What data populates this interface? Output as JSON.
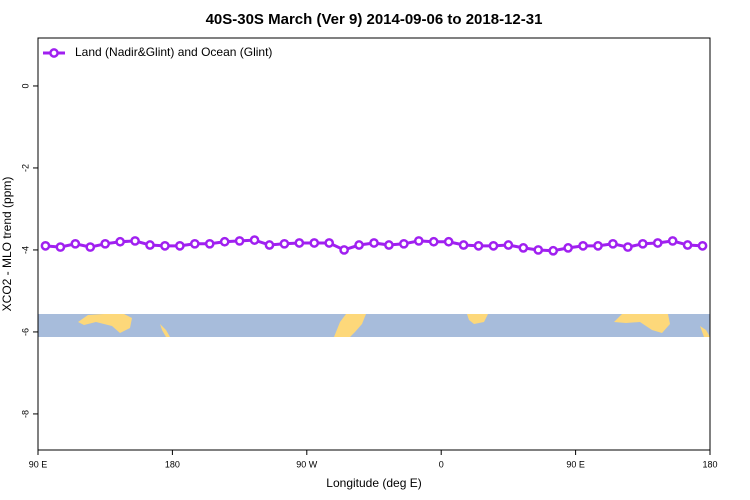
{
  "chart_data": {
    "type": "line",
    "title": "40S-30S March (Ver 9)   2014-09-06 to 2018-12-31",
    "xlabel": "Longitude (deg E)",
    "ylabel": "XCO2 - MLO trend (ppm)",
    "xlim": [
      90,
      540
    ],
    "xticks": [
      {
        "value": 90,
        "label": "90 E"
      },
      180,
      {
        "value": 270,
        "label": "90 W"
      },
      {
        "value": 360,
        "label": "0"
      },
      {
        "value": 450,
        "label": "90 E"
      },
      {
        "value": 540,
        "label": "180"
      }
    ],
    "ylim": [
      -8.88,
      1.17
    ],
    "yticks": [
      0,
      -2,
      -4,
      -6,
      -8
    ],
    "legend": "upper left",
    "x": [
      95,
      105,
      115,
      125,
      135,
      145,
      155,
      165,
      175,
      185,
      195,
      205,
      215,
      225,
      235,
      245,
      255,
      265,
      275,
      285,
      295,
      305,
      315,
      325,
      335,
      345,
      355,
      365,
      375,
      385,
      395,
      405,
      415,
      425,
      435,
      445,
      455,
      465,
      475,
      485,
      495,
      505,
      515,
      525,
      535
    ],
    "series": [
      {
        "name": "Land (Nadir&Glint) and Ocean (Glint)",
        "color": "#a020f0",
        "values": [
          -3.9,
          -3.93,
          -3.85,
          -3.93,
          -3.85,
          -3.8,
          -3.78,
          -3.88,
          -3.9,
          -3.9,
          -3.85,
          -3.85,
          -3.8,
          -3.78,
          -3.76,
          -3.88,
          -3.85,
          -3.83,
          -3.83,
          -3.83,
          -4.0,
          -3.88,
          -3.83,
          -3.88,
          -3.85,
          -3.78,
          -3.8,
          -3.8,
          -3.88,
          -3.9,
          -3.9,
          -3.88,
          -3.95,
          -4.0,
          -4.02,
          -3.95,
          -3.9,
          -3.9,
          -3.85,
          -3.93,
          -3.85,
          -3.83,
          -3.78,
          -3.88,
          -3.9
        ]
      }
    ]
  }
}
